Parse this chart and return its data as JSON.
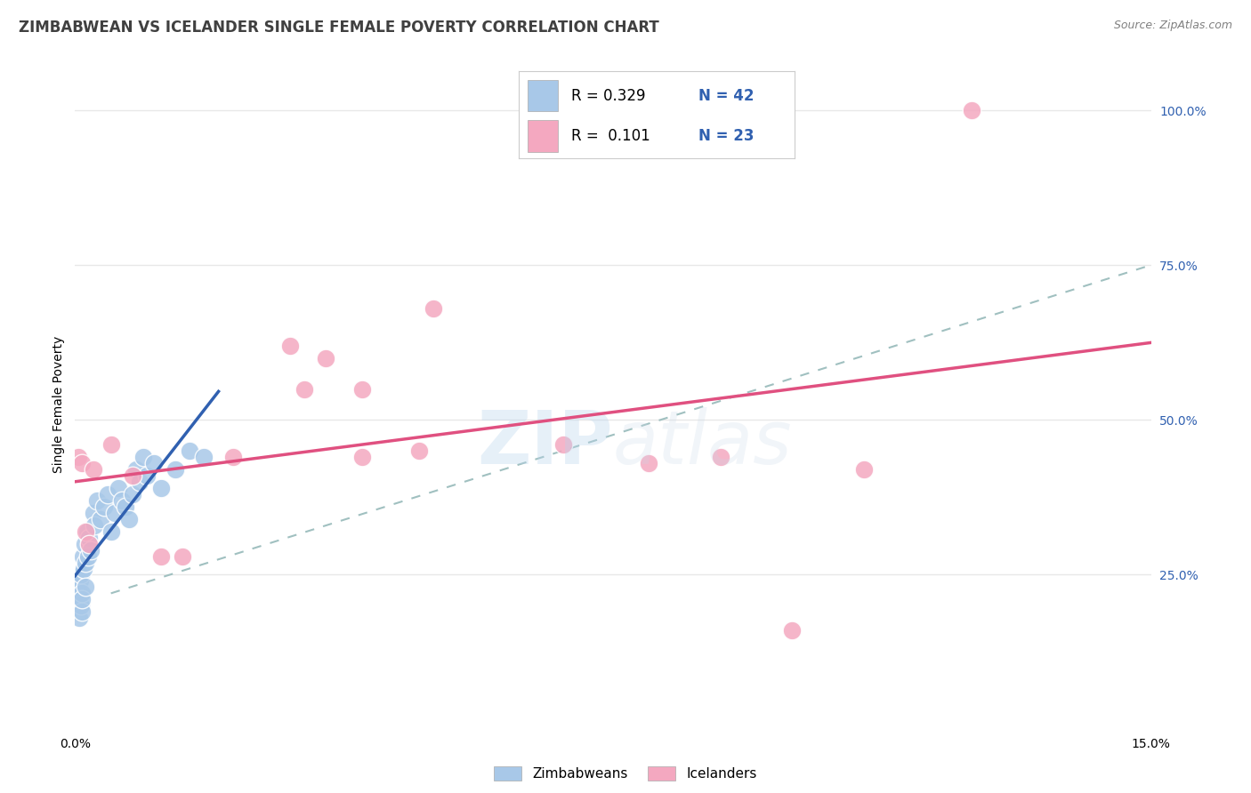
{
  "title": "ZIMBABWEAN VS ICELANDER SINGLE FEMALE POVERTY CORRELATION CHART",
  "source": "Source: ZipAtlas.com",
  "ylabel": "Single Female Poverty",
  "xlim": [
    0.0,
    15.0
  ],
  "ylim": [
    0.0,
    105.0
  ],
  "ytick_vals": [
    25.0,
    50.0,
    75.0,
    100.0
  ],
  "ytick_labels": [
    "25.0%",
    "50.0%",
    "75.0%",
    "100.0%"
  ],
  "xtick_vals": [
    0.0,
    15.0
  ],
  "xtick_labels": [
    "0.0%",
    "15.0%"
  ],
  "blue_scatter_color": "#a8c8e8",
  "pink_scatter_color": "#f4a8c0",
  "blue_line_color": "#3060b0",
  "pink_line_color": "#e05080",
  "dashed_line_color": "#a0c0c0",
  "grid_color": "#e8e8e8",
  "background_color": "#ffffff",
  "watermark_color": "#c8ddf0",
  "title_color": "#404040",
  "source_color": "#808080",
  "tick_color": "#3060b0",
  "zim_x": [
    0.02,
    0.03,
    0.04,
    0.05,
    0.06,
    0.07,
    0.08,
    0.08,
    0.09,
    0.1,
    0.1,
    0.11,
    0.12,
    0.13,
    0.14,
    0.15,
    0.17,
    0.18,
    0.2,
    0.22,
    0.25,
    0.27,
    0.3,
    0.35,
    0.4,
    0.45,
    0.5,
    0.55,
    0.6,
    0.65,
    0.7,
    0.75,
    0.8,
    0.85,
    0.9,
    0.95,
    1.0,
    1.1,
    1.2,
    1.4,
    1.6,
    1.8
  ],
  "zim_y": [
    21.0,
    22.0,
    20.0,
    23.0,
    18.0,
    24.0,
    25.0,
    20.0,
    19.0,
    22.0,
    21.0,
    28.0,
    26.0,
    30.0,
    27.0,
    23.0,
    32.0,
    28.0,
    31.0,
    29.0,
    35.0,
    33.0,
    37.0,
    34.0,
    36.0,
    38.0,
    32.0,
    35.0,
    39.0,
    37.0,
    36.0,
    34.0,
    38.0,
    42.0,
    40.0,
    44.0,
    41.0,
    43.0,
    39.0,
    42.0,
    45.0,
    44.0
  ],
  "ice_x": [
    0.05,
    0.1,
    0.15,
    0.2,
    0.25,
    0.5,
    0.8,
    1.2,
    1.5,
    2.2,
    3.0,
    3.2,
    3.5,
    4.0,
    4.0,
    4.8,
    5.0,
    6.8,
    8.0,
    9.0,
    10.0,
    11.0,
    12.5
  ],
  "ice_y": [
    44.0,
    43.0,
    32.0,
    30.0,
    42.0,
    46.0,
    41.0,
    28.0,
    28.0,
    44.0,
    62.0,
    55.0,
    60.0,
    55.0,
    44.0,
    45.0,
    68.0,
    46.0,
    43.0,
    44.0,
    16.0,
    42.0,
    100.0
  ],
  "R_zim": 0.329,
  "N_zim": 42,
  "R_ice": 0.101,
  "N_ice": 23,
  "title_fontsize": 12,
  "source_fontsize": 9,
  "axis_label_fontsize": 10,
  "tick_fontsize": 10,
  "legend_fontsize": 13,
  "watermark_fontsize": 60
}
